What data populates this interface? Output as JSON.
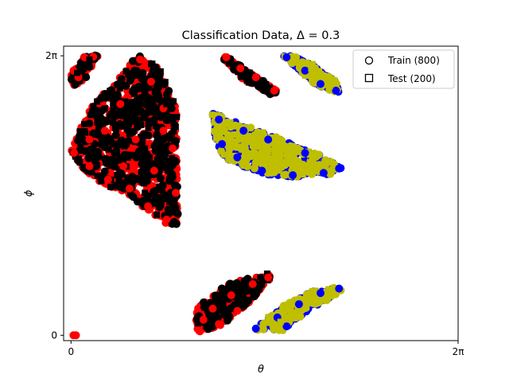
{
  "chart_data": {
    "type": "scatter",
    "title": "Classification Data, Δ = 0.3",
    "xlabel": "θ",
    "ylabel": "ϕ",
    "xlim": [
      -0.12,
      6.2832
    ],
    "ylim": [
      -0.12,
      6.5
    ],
    "x_ticks": [
      {
        "value": 0,
        "label": "0"
      },
      {
        "value": 6.2832,
        "label": "2π"
      }
    ],
    "y_ticks": [
      {
        "value": 0,
        "label": "0"
      },
      {
        "value": 6.2832,
        "label": "2π"
      }
    ],
    "grid": false,
    "legend": {
      "position": "top-right",
      "entries": [
        {
          "marker": "circle",
          "label": "Train (800)"
        },
        {
          "marker": "square",
          "label": "Test (200)"
        }
      ]
    },
    "colors": {
      "train_class_a": "#ff0000",
      "test_class_a": "#000000",
      "train_class_b": "#0000ff",
      "test_class_b": "#bfbf00"
    },
    "regions": [
      {
        "class": "a",
        "polygon": [
          [
            1.08,
            6.28
          ],
          [
            0.28,
            5.05
          ],
          [
            0.0,
            4.15
          ],
          [
            0.22,
            3.65
          ],
          [
            0.95,
            3.1
          ],
          [
            1.55,
            2.5
          ],
          [
            1.74,
            2.5
          ],
          [
            1.72,
            3.8
          ],
          [
            1.72,
            5.05
          ],
          [
            1.42,
            6.0
          ]
        ]
      },
      {
        "class": "a",
        "polygon": [
          [
            2.02,
            0.18
          ],
          [
            2.05,
            0.6
          ],
          [
            2.55,
            1.18
          ],
          [
            3.24,
            1.38
          ],
          [
            3.26,
            1.28
          ],
          [
            2.9,
            0.75
          ],
          [
            2.42,
            0.22
          ],
          [
            2.12,
            0.05
          ]
        ]
      },
      {
        "class": "a",
        "polygon": [
          [
            0.0,
            5.88
          ],
          [
            0.25,
            6.28
          ],
          [
            0.44,
            6.28
          ],
          [
            0.15,
            5.65
          ],
          [
            0.02,
            5.62
          ]
        ]
      },
      {
        "class": "a",
        "polygon": [
          [
            2.5,
            6.28
          ],
          [
            3.1,
            5.72
          ],
          [
            3.35,
            5.48
          ],
          [
            3.25,
            5.42
          ],
          [
            2.8,
            5.75
          ],
          [
            2.48,
            6.2
          ]
        ]
      },
      {
        "class": "b",
        "polygon": [
          [
            2.3,
            5.0
          ],
          [
            2.35,
            4.3
          ],
          [
            2.55,
            3.92
          ],
          [
            3.2,
            3.6
          ],
          [
            3.75,
            3.55
          ],
          [
            4.2,
            3.62
          ],
          [
            4.4,
            3.75
          ],
          [
            4.05,
            4.05
          ],
          [
            3.35,
            4.42
          ],
          [
            2.75,
            4.75
          ]
        ]
      },
      {
        "class": "b",
        "polygon": [
          [
            2.95,
            0.12
          ],
          [
            3.2,
            0.38
          ],
          [
            3.65,
            0.82
          ],
          [
            4.05,
            1.05
          ],
          [
            4.4,
            1.08
          ],
          [
            4.3,
            0.92
          ],
          [
            3.85,
            0.55
          ],
          [
            3.45,
            0.12
          ]
        ]
      },
      {
        "class": "b",
        "polygon": [
          [
            3.45,
            6.28
          ],
          [
            3.95,
            5.65
          ],
          [
            4.35,
            5.45
          ],
          [
            4.3,
            5.7
          ],
          [
            3.85,
            6.15
          ],
          [
            3.65,
            6.28
          ]
        ]
      }
    ],
    "series": [
      {
        "name": "Train (800)",
        "marker": "circle",
        "values": [
          {
            "x": 0.04,
            "y": 0.0,
            "c": "a"
          },
          {
            "x": 0.08,
            "y": 0.0,
            "c": "a"
          },
          {
            "x": 0.04,
            "y": 5.95,
            "c": "a"
          },
          {
            "x": 0.22,
            "y": 6.25,
            "c": "a"
          },
          {
            "x": 0.36,
            "y": 6.26,
            "c": "a"
          },
          {
            "x": 0.12,
            "y": 5.8,
            "c": "a"
          },
          {
            "x": 0.05,
            "y": 4.1,
            "c": "a"
          },
          {
            "x": 0.3,
            "y": 3.8,
            "c": "a"
          },
          {
            "x": 0.6,
            "y": 3.5,
            "c": "a"
          },
          {
            "x": 0.95,
            "y": 3.3,
            "c": "a"
          },
          {
            "x": 1.25,
            "y": 2.9,
            "c": "a"
          },
          {
            "x": 1.55,
            "y": 2.6,
            "c": "a"
          },
          {
            "x": 1.7,
            "y": 3.2,
            "c": "a"
          },
          {
            "x": 1.65,
            "y": 4.2,
            "c": "a"
          },
          {
            "x": 1.5,
            "y": 5.1,
            "c": "a"
          },
          {
            "x": 1.3,
            "y": 5.7,
            "c": "a"
          },
          {
            "x": 1.12,
            "y": 6.2,
            "c": "a"
          },
          {
            "x": 0.8,
            "y": 5.2,
            "c": "a"
          },
          {
            "x": 0.55,
            "y": 4.6,
            "c": "a"
          },
          {
            "x": 0.3,
            "y": 4.4,
            "c": "a"
          },
          {
            "x": 1.05,
            "y": 4.4,
            "c": "a"
          },
          {
            "x": 1.35,
            "y": 3.7,
            "c": "a"
          },
          {
            "x": 0.85,
            "y": 3.8,
            "c": "a"
          },
          {
            "x": 1.5,
            "y": 4.6,
            "c": "a"
          },
          {
            "x": 2.08,
            "y": 0.1,
            "c": "a"
          },
          {
            "x": 2.3,
            "y": 0.6,
            "c": "a"
          },
          {
            "x": 2.6,
            "y": 0.9,
            "c": "a"
          },
          {
            "x": 2.95,
            "y": 1.15,
            "c": "a"
          },
          {
            "x": 3.2,
            "y": 1.3,
            "c": "a"
          },
          {
            "x": 2.7,
            "y": 0.55,
            "c": "a"
          },
          {
            "x": 2.4,
            "y": 0.25,
            "c": "a"
          },
          {
            "x": 2.15,
            "y": 0.35,
            "c": "a"
          },
          {
            "x": 2.52,
            "y": 6.25,
            "c": "a"
          },
          {
            "x": 2.75,
            "y": 6.0,
            "c": "a"
          },
          {
            "x": 3.0,
            "y": 5.8,
            "c": "a"
          },
          {
            "x": 3.3,
            "y": 5.5,
            "c": "a"
          },
          {
            "x": 2.4,
            "y": 4.85,
            "c": "b"
          },
          {
            "x": 2.45,
            "y": 4.3,
            "c": "b"
          },
          {
            "x": 2.7,
            "y": 4.0,
            "c": "b"
          },
          {
            "x": 3.1,
            "y": 3.7,
            "c": "b"
          },
          {
            "x": 3.6,
            "y": 3.6,
            "c": "b"
          },
          {
            "x": 4.1,
            "y": 3.65,
            "c": "b"
          },
          {
            "x": 4.35,
            "y": 3.75,
            "c": "b"
          },
          {
            "x": 3.8,
            "y": 4.1,
            "c": "b"
          },
          {
            "x": 3.2,
            "y": 4.4,
            "c": "b"
          },
          {
            "x": 2.8,
            "y": 4.6,
            "c": "b"
          },
          {
            "x": 3.0,
            "y": 0.15,
            "c": "b"
          },
          {
            "x": 3.35,
            "y": 0.4,
            "c": "b"
          },
          {
            "x": 3.7,
            "y": 0.7,
            "c": "b"
          },
          {
            "x": 4.05,
            "y": 0.95,
            "c": "b"
          },
          {
            "x": 4.35,
            "y": 1.05,
            "c": "b"
          },
          {
            "x": 3.5,
            "y": 0.2,
            "c": "b"
          },
          {
            "x": 3.5,
            "y": 6.25,
            "c": "b"
          },
          {
            "x": 3.8,
            "y": 5.95,
            "c": "b"
          },
          {
            "x": 4.05,
            "y": 5.65,
            "c": "b"
          },
          {
            "x": 4.3,
            "y": 5.5,
            "c": "b"
          }
        ]
      },
      {
        "name": "Test (200)",
        "marker": "square",
        "values": [
          {
            "x": 0.1,
            "y": 5.9,
            "c": "a"
          },
          {
            "x": 0.3,
            "y": 6.2,
            "c": "a"
          },
          {
            "x": 0.4,
            "y": 4.0,
            "c": "a"
          },
          {
            "x": 0.75,
            "y": 3.6,
            "c": "a"
          },
          {
            "x": 1.2,
            "y": 3.2,
            "c": "a"
          },
          {
            "x": 1.6,
            "y": 3.0,
            "c": "a"
          },
          {
            "x": 1.55,
            "y": 5.2,
            "c": "a"
          },
          {
            "x": 1.3,
            "y": 6.1,
            "c": "a"
          },
          {
            "x": 0.9,
            "y": 4.8,
            "c": "a"
          },
          {
            "x": 1.2,
            "y": 4.2,
            "c": "a"
          },
          {
            "x": 2.5,
            "y": 0.5,
            "c": "a"
          },
          {
            "x": 3.0,
            "y": 1.0,
            "c": "a"
          },
          {
            "x": 2.9,
            "y": 5.9,
            "c": "a"
          },
          {
            "x": 2.6,
            "y": 4.5,
            "c": "b"
          },
          {
            "x": 3.3,
            "y": 3.9,
            "c": "b"
          },
          {
            "x": 3.9,
            "y": 3.75,
            "c": "b"
          },
          {
            "x": 3.4,
            "y": 0.3,
            "c": "b"
          },
          {
            "x": 3.9,
            "y": 0.85,
            "c": "b"
          },
          {
            "x": 3.9,
            "y": 6.0,
            "c": "b"
          },
          {
            "x": 4.2,
            "y": 5.6,
            "c": "b"
          }
        ]
      }
    ]
  }
}
